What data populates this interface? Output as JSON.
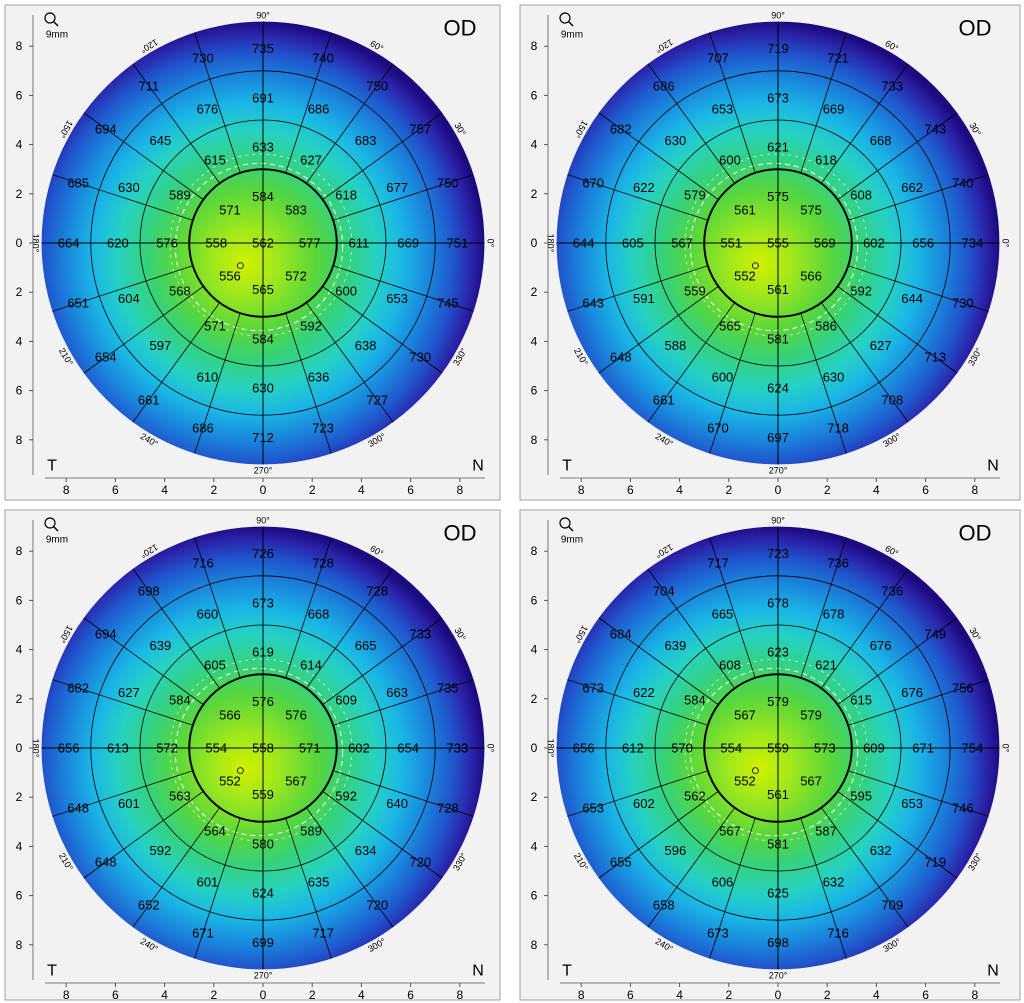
{
  "eye": "OD",
  "zoom": "9mm",
  "temporal": "T",
  "nasal": "N",
  "angle_labels": [
    "90°",
    "60°",
    "30°",
    "0°",
    "330°",
    "300°",
    "270°",
    "240°",
    "210°",
    "180°",
    "150°",
    "120°"
  ],
  "axis_ticks": [
    8,
    6,
    4,
    2,
    0,
    2,
    4,
    6,
    8
  ],
  "maps": [
    {
      "center": 562,
      "rings": [
        [
          584,
          583,
          577,
          572,
          565,
          556,
          558,
          571
        ],
        [
          633,
          627,
          618,
          611,
          600,
          592,
          584,
          571,
          568,
          576,
          589,
          615
        ],
        [
          691,
          686,
          683,
          677,
          669,
          653,
          638,
          636,
          630,
          610,
          597,
          604,
          620,
          630,
          645,
          676
        ],
        [
          735,
          740,
          750,
          757,
          750,
          751,
          745,
          730,
          727,
          723,
          712,
          686,
          661,
          654,
          651,
          664,
          685,
          694,
          711,
          730
        ]
      ]
    },
    {
      "center": 555,
      "rings": [
        [
          575,
          575,
          569,
          566,
          561,
          552,
          551,
          561
        ],
        [
          621,
          618,
          608,
          602,
          592,
          586,
          581,
          565,
          559,
          567,
          579,
          600
        ],
        [
          673,
          669,
          668,
          662,
          656,
          644,
          627,
          630,
          624,
          600,
          588,
          591,
          605,
          622,
          630,
          653
        ],
        [
          719,
          721,
          733,
          743,
          740,
          734,
          730,
          713,
          708,
          718,
          697,
          670,
          661,
          648,
          643,
          644,
          670,
          682,
          686,
          707
        ]
      ]
    },
    {
      "center": 558,
      "rings": [
        [
          576,
          576,
          571,
          567,
          559,
          552,
          554,
          566
        ],
        [
          619,
          614,
          609,
          602,
          592,
          589,
          580,
          564,
          563,
          572,
          584,
          605
        ],
        [
          673,
          668,
          665,
          663,
          654,
          640,
          634,
          635,
          624,
          601,
          592,
          601,
          613,
          627,
          639,
          660
        ],
        [
          726,
          728,
          728,
          733,
          735,
          733,
          728,
          720,
          720,
          717,
          699,
          671,
          652,
          648,
          648,
          656,
          682,
          694,
          698,
          716
        ]
      ]
    },
    {
      "center": 559,
      "rings": [
        [
          579,
          579,
          573,
          567,
          561,
          552,
          554,
          567
        ],
        [
          623,
          621,
          615,
          609,
          595,
          587,
          581,
          567,
          562,
          570,
          584,
          608
        ],
        [
          678,
          678,
          676,
          676,
          671,
          653,
          632,
          632,
          625,
          606,
          596,
          602,
          612,
          622,
          639,
          665
        ],
        [
          723,
          736,
          736,
          749,
          756,
          754,
          746,
          719,
          709,
          716,
          698,
          673,
          658,
          655,
          653,
          656,
          673,
          684,
          704,
          717
        ]
      ]
    }
  ]
}
